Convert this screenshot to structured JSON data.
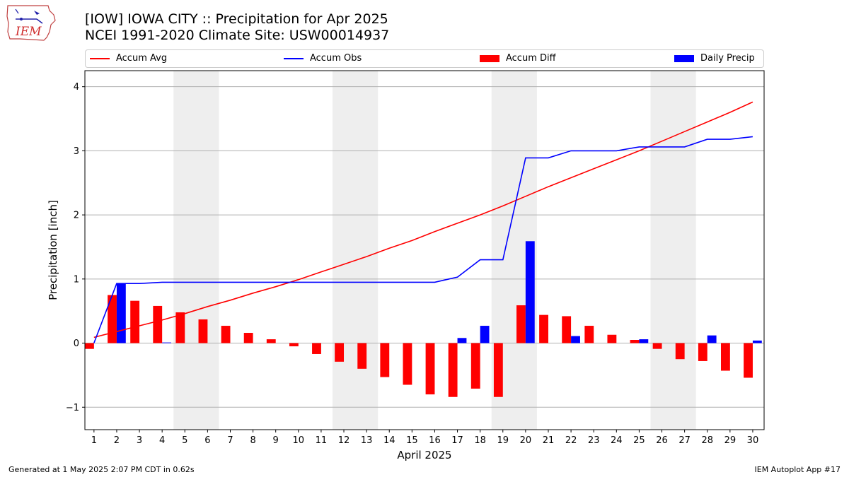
{
  "header": {
    "title_line1": "[IOW] IOWA CITY :: Precipitation for Apr 2025",
    "title_line2": "NCEI 1991-2020 Climate Site: USW00014937",
    "logo_text": "IEM"
  },
  "legend": {
    "accum_avg": "Accum Avg",
    "accum_obs": "Accum Obs",
    "accum_diff": "Accum Diff",
    "daily_precip": "Daily Precip"
  },
  "footer": {
    "generated": "Generated at 1 May 2025 2:07 PM CDT in 0.62s",
    "app": "IEM Autoplot App #17"
  },
  "colors": {
    "accum_avg": "#ff0000",
    "accum_obs": "#0000ff",
    "accum_diff": "#ff0000",
    "daily_precip": "#0000ff",
    "weekend_shade": "#eeeeee",
    "grid": "#b0b0b0"
  },
  "chart_data": {
    "type": "bar",
    "xlabel": "April 2025",
    "ylabel": "Precipitation [inch]",
    "ylim": [
      -1.35,
      4.25
    ],
    "xlim": [
      0.6,
      30.5
    ],
    "yticks": [
      -1,
      0,
      1,
      2,
      3,
      4
    ],
    "ytick_labels": [
      "−1",
      "0",
      "1",
      "2",
      "3",
      "4"
    ],
    "grid": "horizontal",
    "legend_position": "top",
    "x": [
      1,
      2,
      3,
      4,
      5,
      6,
      7,
      8,
      9,
      10,
      11,
      12,
      13,
      14,
      15,
      16,
      17,
      18,
      19,
      20,
      21,
      22,
      23,
      24,
      25,
      26,
      27,
      28,
      29,
      30
    ],
    "weekend_spans": [
      [
        4.5,
        6.5
      ],
      [
        11.5,
        13.5
      ],
      [
        18.5,
        20.5
      ],
      [
        25.5,
        27.5
      ]
    ],
    "series": [
      {
        "name": "Accum Avg",
        "kind": "line",
        "values": [
          0.09,
          0.18,
          0.27,
          0.36,
          0.46,
          0.57,
          0.67,
          0.78,
          0.88,
          0.99,
          1.11,
          1.23,
          1.35,
          1.48,
          1.6,
          1.74,
          1.87,
          2.0,
          2.14,
          2.29,
          2.44,
          2.58,
          2.72,
          2.86,
          3.0,
          3.15,
          3.3,
          3.45,
          3.6,
          3.76
        ]
      },
      {
        "name": "Accum Obs",
        "kind": "line",
        "values": [
          0.0,
          0.93,
          0.93,
          0.95,
          0.95,
          0.95,
          0.95,
          0.95,
          0.95,
          0.95,
          0.95,
          0.95,
          0.95,
          0.95,
          0.95,
          0.95,
          1.03,
          1.3,
          1.3,
          2.89,
          2.89,
          3.0,
          3.0,
          3.0,
          3.06,
          3.06,
          3.06,
          3.18,
          3.18,
          3.22
        ]
      },
      {
        "name": "Accum Diff",
        "kind": "bar",
        "values": [
          -0.09,
          0.75,
          0.66,
          0.58,
          0.48,
          0.37,
          0.27,
          0.16,
          0.06,
          -0.05,
          -0.17,
          -0.29,
          -0.4,
          -0.53,
          -0.65,
          -0.8,
          -0.84,
          -0.71,
          -0.84,
          0.59,
          0.44,
          0.42,
          0.27,
          0.13,
          0.05,
          -0.09,
          -0.25,
          -0.28,
          -0.43,
          -0.54
        ]
      },
      {
        "name": "Daily Precip",
        "kind": "bar",
        "values": [
          0.0,
          0.93,
          0.0,
          0.01,
          0.0,
          0.0,
          0.0,
          0.0,
          0.0,
          0.0,
          0.0,
          0.0,
          0.0,
          0.0,
          0.0,
          0.0,
          0.08,
          0.27,
          0.0,
          1.59,
          0.0,
          0.11,
          0.0,
          0.0,
          0.06,
          0.0,
          0.0,
          0.12,
          0.0,
          0.04
        ]
      }
    ]
  }
}
